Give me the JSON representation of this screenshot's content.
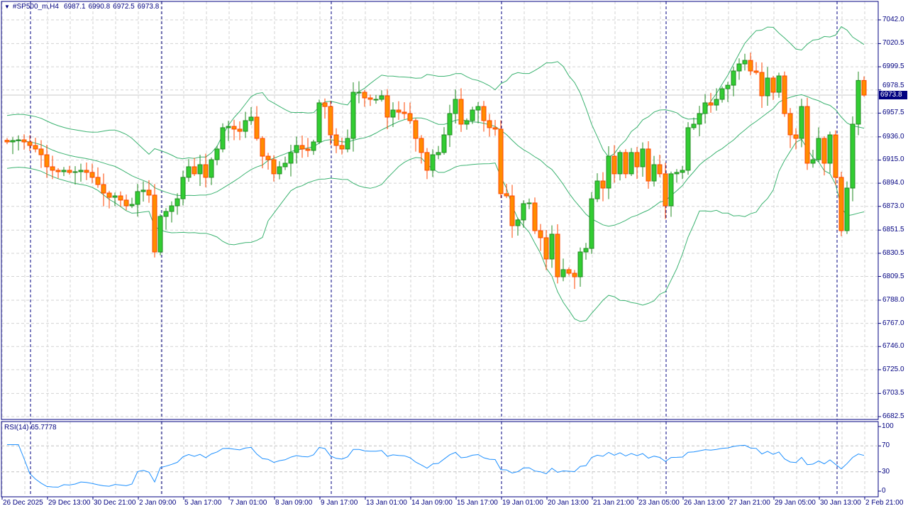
{
  "header": {
    "symbol_timeframe": "#SP500_m,H4",
    "open": "6987.1",
    "high": "6990.8",
    "low": "6972.5",
    "close": "6973.8"
  },
  "current_price_label": "6973.8",
  "price_axis": {
    "labels": [
      "7042.0",
      "7020.5",
      "6999.5",
      "6978.5",
      "6957.5",
      "6936.0",
      "6915.0",
      "6894.0",
      "6873.0",
      "6851.5",
      "6830.5",
      "6809.5",
      "6788.0",
      "6767.0",
      "6746.0",
      "6725.0",
      "6703.5",
      "6682.5"
    ],
    "top": 7042.0,
    "bottom": 6682.5
  },
  "rsi": {
    "label": "RSI(14)",
    "value": "65.7778",
    "period": 14,
    "axis_labels": [
      "100",
      "70",
      "30",
      "0"
    ],
    "levels": [
      70,
      30
    ]
  },
  "time_axis": {
    "labels": [
      "26 Dec 2025",
      "29 Dec 13:00",
      "30 Dec 21:00",
      "2 Jan 09:00",
      "5 Jan 17:00",
      "7 Jan 01:00",
      "8 Jan 09:00",
      "9 Jan 17:00",
      "13 Jan 01:00",
      "14 Jan 09:00",
      "15 Jan 17:00",
      "19 Jan 01:00",
      "20 Jan 13:00",
      "21 Jan 21:00",
      "23 Jan 05:00",
      "26 Jan 13:00",
      "27 Jan 21:00",
      "29 Jan 05:00",
      "30 Jan 13:00",
      "2 Feb 21:00"
    ]
  },
  "colors": {
    "bull_body": "#32cd32",
    "bull_line": "#228b22",
    "bear_body": "#ff8c00",
    "bear_line": "#ff4500",
    "bands": "#3cb371",
    "rsi_line": "#1e90ff",
    "axis": "#000080",
    "grid": "#d3d3d3"
  },
  "bollinger": {
    "period": 20,
    "deviation": 2
  },
  "chart_data": {
    "type": "candlestick",
    "closes": [
      6931.4,
      6932.7,
      6933.3,
      6931.4,
      6928.2,
      6925.0,
      6919.8,
      6908.9,
      6905.7,
      6904.4,
      6905.7,
      6903.8,
      6904.4,
      6905.7,
      6903.8,
      6899.3,
      6892.8,
      6885.1,
      6881.2,
      6882.5,
      6878.7,
      6873.5,
      6874.8,
      6886.4,
      6887.7,
      6883.2,
      6831.7,
      6863.9,
      6868.4,
      6873.5,
      6879.9,
      6899.3,
      6908.9,
      6902.5,
      6910.8,
      6899.3,
      6915.3,
      6925.0,
      6944.3,
      6945.5,
      6943.0,
      6941.0,
      6950.7,
      6953.9,
      6934.6,
      6918.5,
      6915.3,
      6902.5,
      6908.9,
      6912.1,
      6921.8,
      6928.2,
      6925.0,
      6923.7,
      6931.4,
      6966.8,
      6963.5,
      6937.8,
      6928.2,
      6925.0,
      6934.6,
      6976.4,
      6976.4,
      6971.3,
      6970.0,
      6970.0,
      6973.2,
      6953.9,
      6960.3,
      6958.4,
      6957.1,
      6950.7,
      6934.6,
      6921.8,
      6905.7,
      6919.8,
      6921.8,
      6937.8,
      6957.1,
      6970.0,
      6947.5,
      6950.7,
      6960.3,
      6963.5,
      6950.7,
      6944.3,
      6943.0,
      6884.5,
      6882.5,
      6855.5,
      6860.7,
      6875.5,
      6876.1,
      6851.0,
      6844.6,
      6825.3,
      6847.8,
      6809.2,
      6815.7,
      6812.4,
      6809.2,
      6831.7,
      6834.9,
      6879.9,
      6896.0,
      6889.6,
      6918.5,
      6902.5,
      6921.8,
      6902.5,
      6921.8,
      6908.9,
      6925.0,
      6896.0,
      6910.8,
      6902.5,
      6873.5,
      6902.5,
      6903.8,
      6905.7,
      6944.3,
      6947.5,
      6957.1,
      6966.8,
      6964.8,
      6970.0,
      6979.6,
      6982.8,
      6995.7,
      7002.1,
      7005.3,
      6995.7,
      6994.4,
      6973.2,
      6989.3,
      6976.4,
      6991.2,
      6957.1,
      6937.8,
      6934.6,
      6963.5,
      6912.1,
      6915.3,
      6934.6,
      6912.1,
      6937.8,
      6899.3,
      6851.0,
      6889.6,
      6947.5,
      6987.1,
      6973.8
    ],
    "last_candle": {
      "open": 6987.1,
      "high": 6990.8,
      "low": 6972.5,
      "close": 6973.8
    },
    "ylim": [
      6682.5,
      7042.0
    ],
    "grid": true
  }
}
